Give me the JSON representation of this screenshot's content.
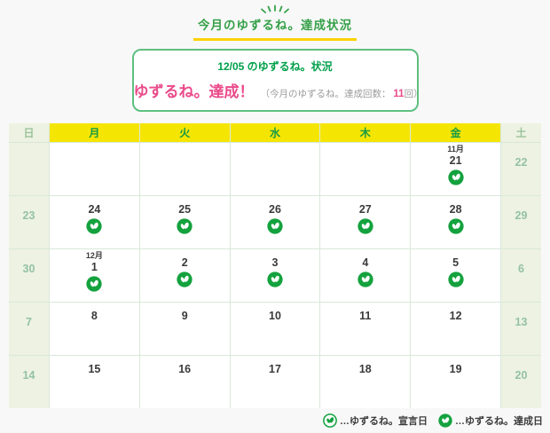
{
  "page": {
    "title": "今月のゆずるね。達成状況"
  },
  "status_box": {
    "heading": "12/05 のゆずるね。状況",
    "result": "ゆずるね。達成！",
    "note_prefix": "（今月のゆずるね。達成回数：",
    "count": "11",
    "note_suffix": "回）"
  },
  "calendar": {
    "day_headers": [
      "日",
      "月",
      "火",
      "水",
      "木",
      "金",
      "土"
    ],
    "weeks": [
      [
        {
          "date": ""
        },
        {
          "date": ""
        },
        {
          "date": ""
        },
        {
          "date": ""
        },
        {
          "date": ""
        },
        {
          "date": "21",
          "month": "11月",
          "icon": "achieved"
        },
        {
          "date": "22"
        }
      ],
      [
        {
          "date": "23"
        },
        {
          "date": "24",
          "icon": "achieved"
        },
        {
          "date": "25",
          "icon": "achieved"
        },
        {
          "date": "26",
          "icon": "achieved"
        },
        {
          "date": "27",
          "icon": "achieved"
        },
        {
          "date": "28",
          "icon": "achieved"
        },
        {
          "date": "29"
        }
      ],
      [
        {
          "date": "30"
        },
        {
          "date": "1",
          "month": "12月",
          "icon": "achieved"
        },
        {
          "date": "2",
          "icon": "achieved"
        },
        {
          "date": "3",
          "icon": "achieved"
        },
        {
          "date": "4",
          "icon": "achieved"
        },
        {
          "date": "5",
          "icon": "achieved"
        },
        {
          "date": "6"
        }
      ],
      [
        {
          "date": "7"
        },
        {
          "date": "8"
        },
        {
          "date": "9"
        },
        {
          "date": "10"
        },
        {
          "date": "11"
        },
        {
          "date": "12"
        },
        {
          "date": "13"
        }
      ],
      [
        {
          "date": "14"
        },
        {
          "date": "15"
        },
        {
          "date": "16"
        },
        {
          "date": "17"
        },
        {
          "date": "18"
        },
        {
          "date": "19"
        },
        {
          "date": "20"
        }
      ]
    ]
  },
  "legend": {
    "items": [
      {
        "icon": "declared",
        "label": "…ゆずるね。宣言日"
      },
      {
        "icon": "achieved",
        "label": "…ゆずるね。達成日"
      }
    ]
  },
  "icons": {
    "achieved": "yuzurune-achieved-icon",
    "declared": "yuzurune-declared-icon",
    "sparkle": "sparkle-decoration-icon"
  },
  "colors": {
    "accent_green": "#35a048",
    "icon_green": "#14a23e",
    "header_yellow": "#f5e502",
    "underline_yellow": "#fcd203",
    "pink": "#ea4b8b",
    "weekend_bg": "#edf2e2",
    "weekend_text": "#94c2a2",
    "grid_line": "#d9e8d9",
    "page_bg": "#f8f8f8"
  }
}
